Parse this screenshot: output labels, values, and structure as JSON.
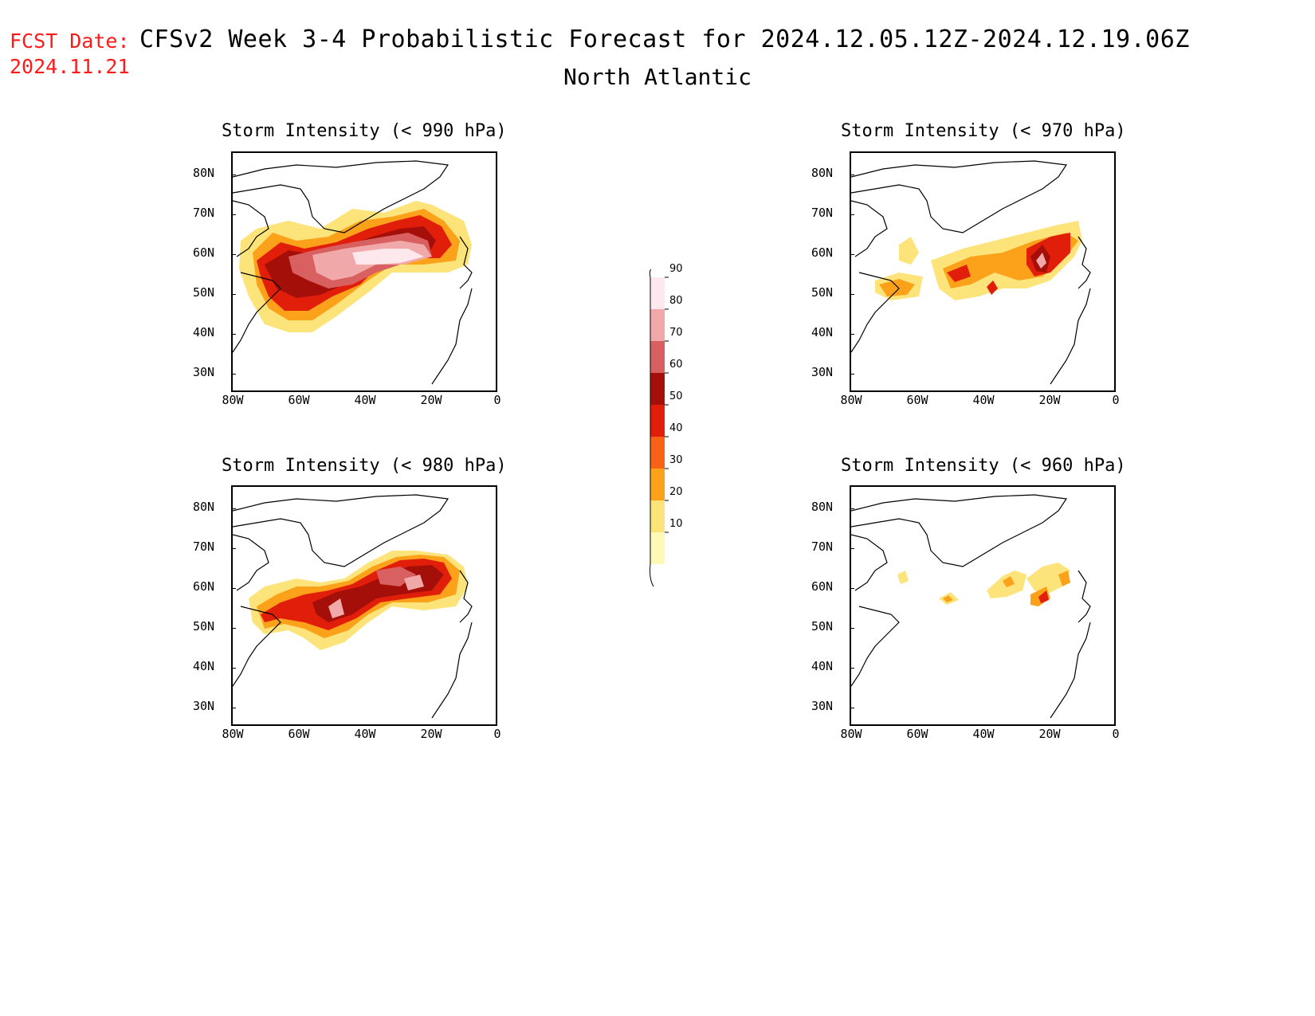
{
  "header": {
    "fcst_label": "FCST Date:",
    "fcst_date": "2024.11.21",
    "title": "CFSv2 Week 3-4 Probabilistic Forecast for 2024.12.05.12Z-2024.12.19.06Z",
    "region": "North Atlantic"
  },
  "panels": [
    {
      "id": "p990",
      "title": "Storm Intensity (< 990 hPa)"
    },
    {
      "id": "p970",
      "title": "Storm Intensity (< 970 hPa)"
    },
    {
      "id": "p980",
      "title": "Storm Intensity (< 980 hPa)"
    },
    {
      "id": "p960",
      "title": "Storm Intensity (< 960 hPa)"
    }
  ],
  "axes": {
    "lat_labels": [
      "80N",
      "70N",
      "60N",
      "50N",
      "40N",
      "30N"
    ],
    "lon_labels": [
      "80W",
      "60W",
      "40W",
      "20W",
      "0"
    ]
  },
  "colorbar": {
    "levels": [
      "10",
      "20",
      "30",
      "40",
      "50",
      "60",
      "70",
      "80",
      "90"
    ],
    "colors": [
      "#fff9b8",
      "#fde47a",
      "#fca21a",
      "#f86214",
      "#e01e0a",
      "#a50f0a",
      "#d96060",
      "#f0a8a8",
      "#fde8ee"
    ]
  }
}
